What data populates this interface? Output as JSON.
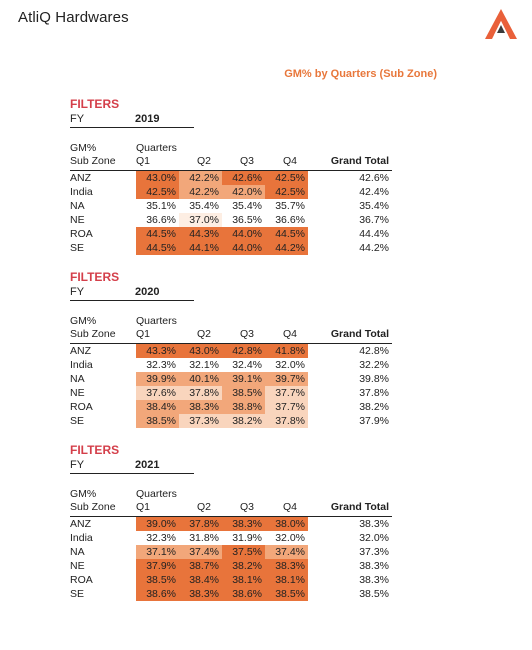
{
  "brand": {
    "name": "AtliQ Hardwares",
    "logo_icon": "atliq-logo-icon"
  },
  "report": {
    "title": "GM% by Quarters (Sub Zone)"
  },
  "colors": {
    "filters": "#d43f4a",
    "title": "#e8773b",
    "heat_high": "#e8743b",
    "heat_mid": "#f2a77a",
    "heat_low": "#f9d5bd",
    "heat_min": "#fdeee3"
  },
  "headers": {
    "filters": "FILTERS",
    "fy": "FY",
    "gm": "GM%",
    "sub_zone": "Sub Zone",
    "quarters": "Quarters",
    "q1": "Q1",
    "q2": "Q2",
    "q3": "Q3",
    "q4": "Q4",
    "grand_total": "Grand Total"
  },
  "tables": [
    {
      "fy": "2019",
      "rows": [
        {
          "zone": "ANZ",
          "q1": "43.0%",
          "q2": "42.2%",
          "q3": "42.6%",
          "q4": "42.5%",
          "total": "42.6%"
        },
        {
          "zone": "India",
          "q1": "42.5%",
          "q2": "42.2%",
          "q3": "42.0%",
          "q4": "42.5%",
          "total": "42.4%"
        },
        {
          "zone": "NA",
          "q1": "35.1%",
          "q2": "35.4%",
          "q3": "35.4%",
          "q4": "35.7%",
          "total": "35.4%"
        },
        {
          "zone": "NE",
          "q1": "36.6%",
          "q2": "37.0%",
          "q3": "36.5%",
          "q4": "36.6%",
          "total": "36.7%"
        },
        {
          "zone": "ROA",
          "q1": "44.5%",
          "q2": "44.3%",
          "q3": "44.0%",
          "q4": "44.5%",
          "total": "44.4%"
        },
        {
          "zone": "SE",
          "q1": "44.5%",
          "q2": "44.1%",
          "q3": "44.0%",
          "q4": "44.2%",
          "total": "44.2%"
        }
      ]
    },
    {
      "fy": "2020",
      "rows": [
        {
          "zone": "ANZ",
          "q1": "43.3%",
          "q2": "43.0%",
          "q3": "42.8%",
          "q4": "41.8%",
          "total": "42.8%"
        },
        {
          "zone": "India",
          "q1": "32.3%",
          "q2": "32.1%",
          "q3": "32.4%",
          "q4": "32.0%",
          "total": "32.2%"
        },
        {
          "zone": "NA",
          "q1": "39.9%",
          "q2": "40.1%",
          "q3": "39.1%",
          "q4": "39.7%",
          "total": "39.8%"
        },
        {
          "zone": "NE",
          "q1": "37.6%",
          "q2": "37.8%",
          "q3": "38.5%",
          "q4": "37.7%",
          "total": "37.8%"
        },
        {
          "zone": "ROA",
          "q1": "38.4%",
          "q2": "38.3%",
          "q3": "38.8%",
          "q4": "37.7%",
          "total": "38.2%"
        },
        {
          "zone": "SE",
          "q1": "38.5%",
          "q2": "37.3%",
          "q3": "38.2%",
          "q4": "37.8%",
          "total": "37.9%"
        }
      ]
    },
    {
      "fy": "2021",
      "rows": [
        {
          "zone": "ANZ",
          "q1": "39.0%",
          "q2": "37.8%",
          "q3": "38.3%",
          "q4": "38.0%",
          "total": "38.3%"
        },
        {
          "zone": "India",
          "q1": "32.3%",
          "q2": "31.8%",
          "q3": "31.9%",
          "q4": "32.0%",
          "total": "32.0%"
        },
        {
          "zone": "NA",
          "q1": "37.1%",
          "q2": "37.4%",
          "q3": "37.5%",
          "q4": "37.4%",
          "total": "37.3%"
        },
        {
          "zone": "NE",
          "q1": "37.9%",
          "q2": "38.7%",
          "q3": "38.2%",
          "q4": "38.3%",
          "total": "38.3%"
        },
        {
          "zone": "ROA",
          "q1": "38.5%",
          "q2": "38.4%",
          "q3": "38.1%",
          "q4": "38.1%",
          "total": "38.3%"
        },
        {
          "zone": "SE",
          "q1": "38.6%",
          "q2": "38.3%",
          "q3": "38.6%",
          "q4": "38.5%",
          "total": "38.5%"
        }
      ]
    }
  ]
}
